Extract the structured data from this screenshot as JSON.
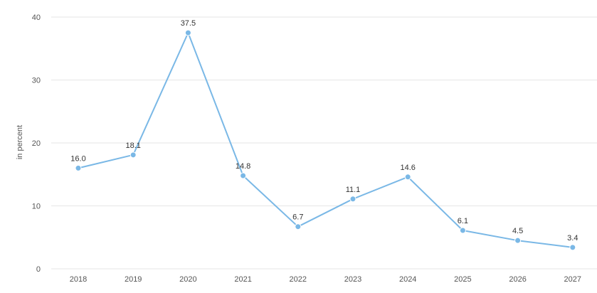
{
  "chart_data": {
    "type": "line",
    "categories": [
      "2018",
      "2019",
      "2020",
      "2021",
      "2022",
      "2023",
      "2024",
      "2025",
      "2026",
      "2027"
    ],
    "series": [
      {
        "values": [
          16.0,
          18.1,
          37.5,
          14.8,
          6.7,
          11.1,
          14.6,
          6.1,
          4.5,
          3.4
        ]
      }
    ],
    "data_labels": [
      "16.0",
      "18.1",
      "37.5",
      "14.8",
      "6.7",
      "11.1",
      "14.6",
      "6.1",
      "4.5",
      "3.4"
    ],
    "ylabel": "in percent",
    "ylim": [
      0,
      40
    ],
    "yticks": [
      "0",
      "10",
      "20",
      "30",
      "40"
    ],
    "grid": true,
    "line_color": "#7ab8e6",
    "grid_color": "#e6e6e6"
  }
}
